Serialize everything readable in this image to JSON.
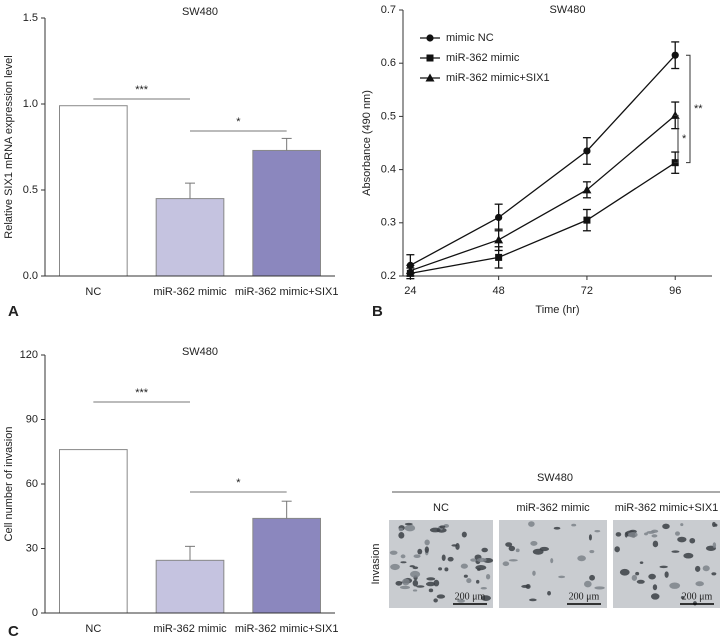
{
  "chart_data": [
    {
      "type": "bar",
      "panel": "A",
      "title": "SW480",
      "ylabel": "Relative SIX1 mRNA expression level",
      "categories": [
        "NC",
        "miR-362 mimic",
        "miR-362 mimic+SIX1"
      ],
      "values": [
        0.99,
        0.45,
        0.73
      ],
      "errors": [
        0,
        0.09,
        0.07
      ],
      "colors": [
        "#ffffff",
        "#c5c3e0",
        "#8b87be"
      ],
      "ylim": [
        0,
        1.5
      ],
      "yticks": [
        {
          "value": 0,
          "label": "0.0"
        },
        {
          "value": 0.5,
          "label": "0.5"
        },
        {
          "value": 1,
          "label": "1.0"
        },
        {
          "value": 1.5,
          "label": "1.5"
        }
      ],
      "annotations": [
        "***",
        "*"
      ]
    },
    {
      "type": "line",
      "panel": "B",
      "title": "SW480",
      "xlabel": "Time (hr)",
      "ylabel": "Absorbance (490 nm)",
      "x": [
        24,
        48,
        72,
        96
      ],
      "xlim": [
        22,
        106
      ],
      "xticks": [
        24,
        48,
        72,
        96
      ],
      "ylim": [
        0.2,
        0.7
      ],
      "yticks": [
        0.2,
        0.3,
        0.4,
        0.5,
        0.6,
        0.7
      ],
      "series": [
        {
          "name": "mimic NC",
          "color": "#111111",
          "marker": "circle",
          "values": [
            0.22,
            0.31,
            0.435,
            0.615
          ],
          "errors": [
            0.02,
            0.025,
            0.025,
            0.025
          ]
        },
        {
          "name": "miR-362 mimic",
          "color": "#111111",
          "marker": "square",
          "values": [
            0.205,
            0.235,
            0.305,
            0.413
          ],
          "errors": [
            0.01,
            0.02,
            0.02,
            0.02
          ]
        },
        {
          "name": "miR-362 mimic+SIX1",
          "color": "#111111",
          "marker": "triangle",
          "values": [
            0.21,
            0.268,
            0.362,
            0.502
          ],
          "errors": [
            0.01,
            0.02,
            0.015,
            0.025
          ]
        }
      ],
      "annotations": [
        "**",
        "*"
      ]
    },
    {
      "type": "bar",
      "panel": "C",
      "title": "SW480",
      "ylabel": "Cell number of invasion",
      "categories": [
        "NC",
        "miR-362 mimic",
        "miR-362 mimic+SIX1"
      ],
      "values": [
        76,
        24.5,
        44
      ],
      "errors": [
        0,
        6.5,
        8
      ],
      "colors": [
        "#ffffff",
        "#c5c3e0",
        "#8b87be"
      ],
      "ylim": [
        0,
        120
      ],
      "yticks": [
        0,
        30,
        60,
        90,
        120
      ],
      "annotations": [
        "***",
        "*"
      ]
    }
  ],
  "micrographs": {
    "title": "SW480",
    "row_label": "Invasion",
    "columns": [
      "NC",
      "miR-362 mimic",
      "miR-362 mimic+SIX1"
    ],
    "scale_labels": [
      "200 μm",
      "200 μm",
      "200 μm"
    ]
  }
}
